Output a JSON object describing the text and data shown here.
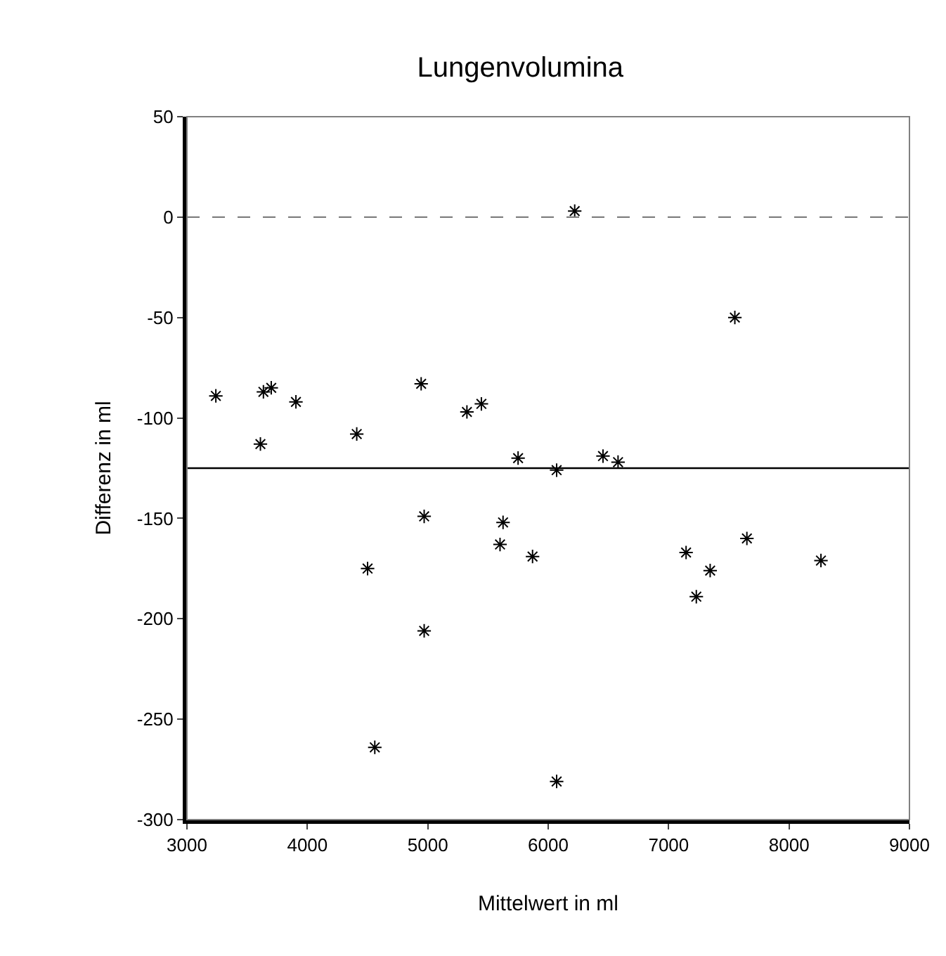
{
  "chart_data": {
    "type": "scatter",
    "title": "Lungenvolumina",
    "xlabel": "Mittelwert in ml",
    "ylabel": "Differenz in ml",
    "x": [
      3240,
      3635,
      3700,
      3610,
      3905,
      4410,
      4945,
      5325,
      5445,
      6220,
      7550,
      5750,
      6070,
      6455,
      6580,
      5625,
      5600,
      5870,
      7145,
      7650,
      7345,
      7230,
      8265,
      6070,
      4970,
      4500,
      4970,
      4560
    ],
    "series": [
      {
        "color": "#000000",
        "values": [
          -89,
          -87,
          -85,
          -113,
          -92,
          -108,
          -83,
          -97,
          -93,
          3,
          -50,
          -120,
          -126,
          -119,
          -122,
          -152,
          -163,
          -169,
          -167,
          -160,
          -176,
          -189,
          -171,
          -281,
          -149,
          -175,
          -206,
          -264
        ]
      }
    ],
    "xlim": [
      3000,
      9000
    ],
    "xticks": [
      3000,
      4000,
      5000,
      6000,
      7000,
      8000,
      9000
    ],
    "ylim": [
      -300,
      50
    ],
    "yticks": [
      -300,
      -250,
      -200,
      -150,
      -100,
      -50,
      0,
      50
    ],
    "ref_lines": [
      {
        "axis": "y",
        "value": 0,
        "color": "#808080",
        "line_style": "dashed"
      },
      {
        "axis": "y",
        "value": -125,
        "color": "#000000",
        "line_style": "solid"
      }
    ],
    "marker": "cross"
  }
}
